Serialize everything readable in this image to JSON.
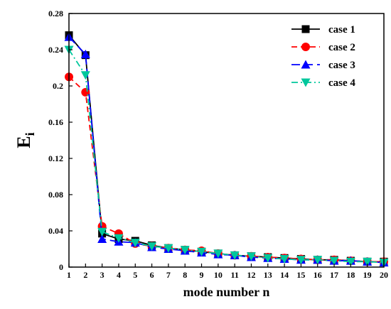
{
  "chart_data": {
    "type": "line",
    "title": "",
    "xlabel": "mode number n",
    "ylabel_main": "E",
    "ylabel_sub": "i",
    "xlim": [
      1,
      20
    ],
    "ylim": [
      0,
      0.28
    ],
    "x": [
      1,
      2,
      3,
      4,
      5,
      6,
      7,
      8,
      9,
      10,
      11,
      12,
      13,
      14,
      15,
      16,
      17,
      18,
      19,
      20
    ],
    "x_ticks": [
      1,
      2,
      3,
      4,
      5,
      6,
      7,
      8,
      9,
      10,
      11,
      12,
      13,
      14,
      15,
      16,
      17,
      18,
      19,
      20
    ],
    "y_ticks": [
      0,
      0.04,
      0.08,
      0.12,
      0.16,
      0.2,
      0.24,
      0.28
    ],
    "y_tick_labels": [
      "0",
      "0.04",
      "0.08",
      "0.12",
      "0.16",
      "0.2",
      "0.24",
      "0.28"
    ],
    "grid": false,
    "legend_position": "top-right",
    "series": [
      {
        "name": "case 1",
        "color": "#000000",
        "marker": "square",
        "dash": "solid",
        "values": [
          0.256,
          0.234,
          0.037,
          0.031,
          0.029,
          0.024,
          0.021,
          0.019,
          0.017,
          0.015,
          0.013,
          0.012,
          0.011,
          0.01,
          0.009,
          0.008,
          0.008,
          0.007,
          0.006,
          0.006
        ]
      },
      {
        "name": "case 2",
        "color": "#ff0000",
        "marker": "circle",
        "dash": "dash",
        "values": [
          0.21,
          0.193,
          0.045,
          0.037,
          0.026,
          0.023,
          0.021,
          0.019,
          0.018,
          0.015,
          0.013,
          0.012,
          0.011,
          0.01,
          0.009,
          0.008,
          0.008,
          0.007,
          0.006,
          0.006
        ]
      },
      {
        "name": "case 3",
        "color": "#0000ff",
        "marker": "triangle-up",
        "dash": "longdash",
        "values": [
          0.254,
          0.235,
          0.031,
          0.028,
          0.027,
          0.022,
          0.02,
          0.018,
          0.016,
          0.014,
          0.013,
          0.011,
          0.01,
          0.009,
          0.008,
          0.008,
          0.007,
          0.007,
          0.006,
          0.005
        ]
      },
      {
        "name": "case 4",
        "color": "#00c79c",
        "marker": "triangle-down",
        "dash": "dashdot",
        "values": [
          0.24,
          0.212,
          0.039,
          0.032,
          0.027,
          0.023,
          0.021,
          0.019,
          0.017,
          0.015,
          0.013,
          0.012,
          0.01,
          0.009,
          0.008,
          0.008,
          0.007,
          0.006,
          0.006,
          0.005
        ]
      }
    ]
  }
}
